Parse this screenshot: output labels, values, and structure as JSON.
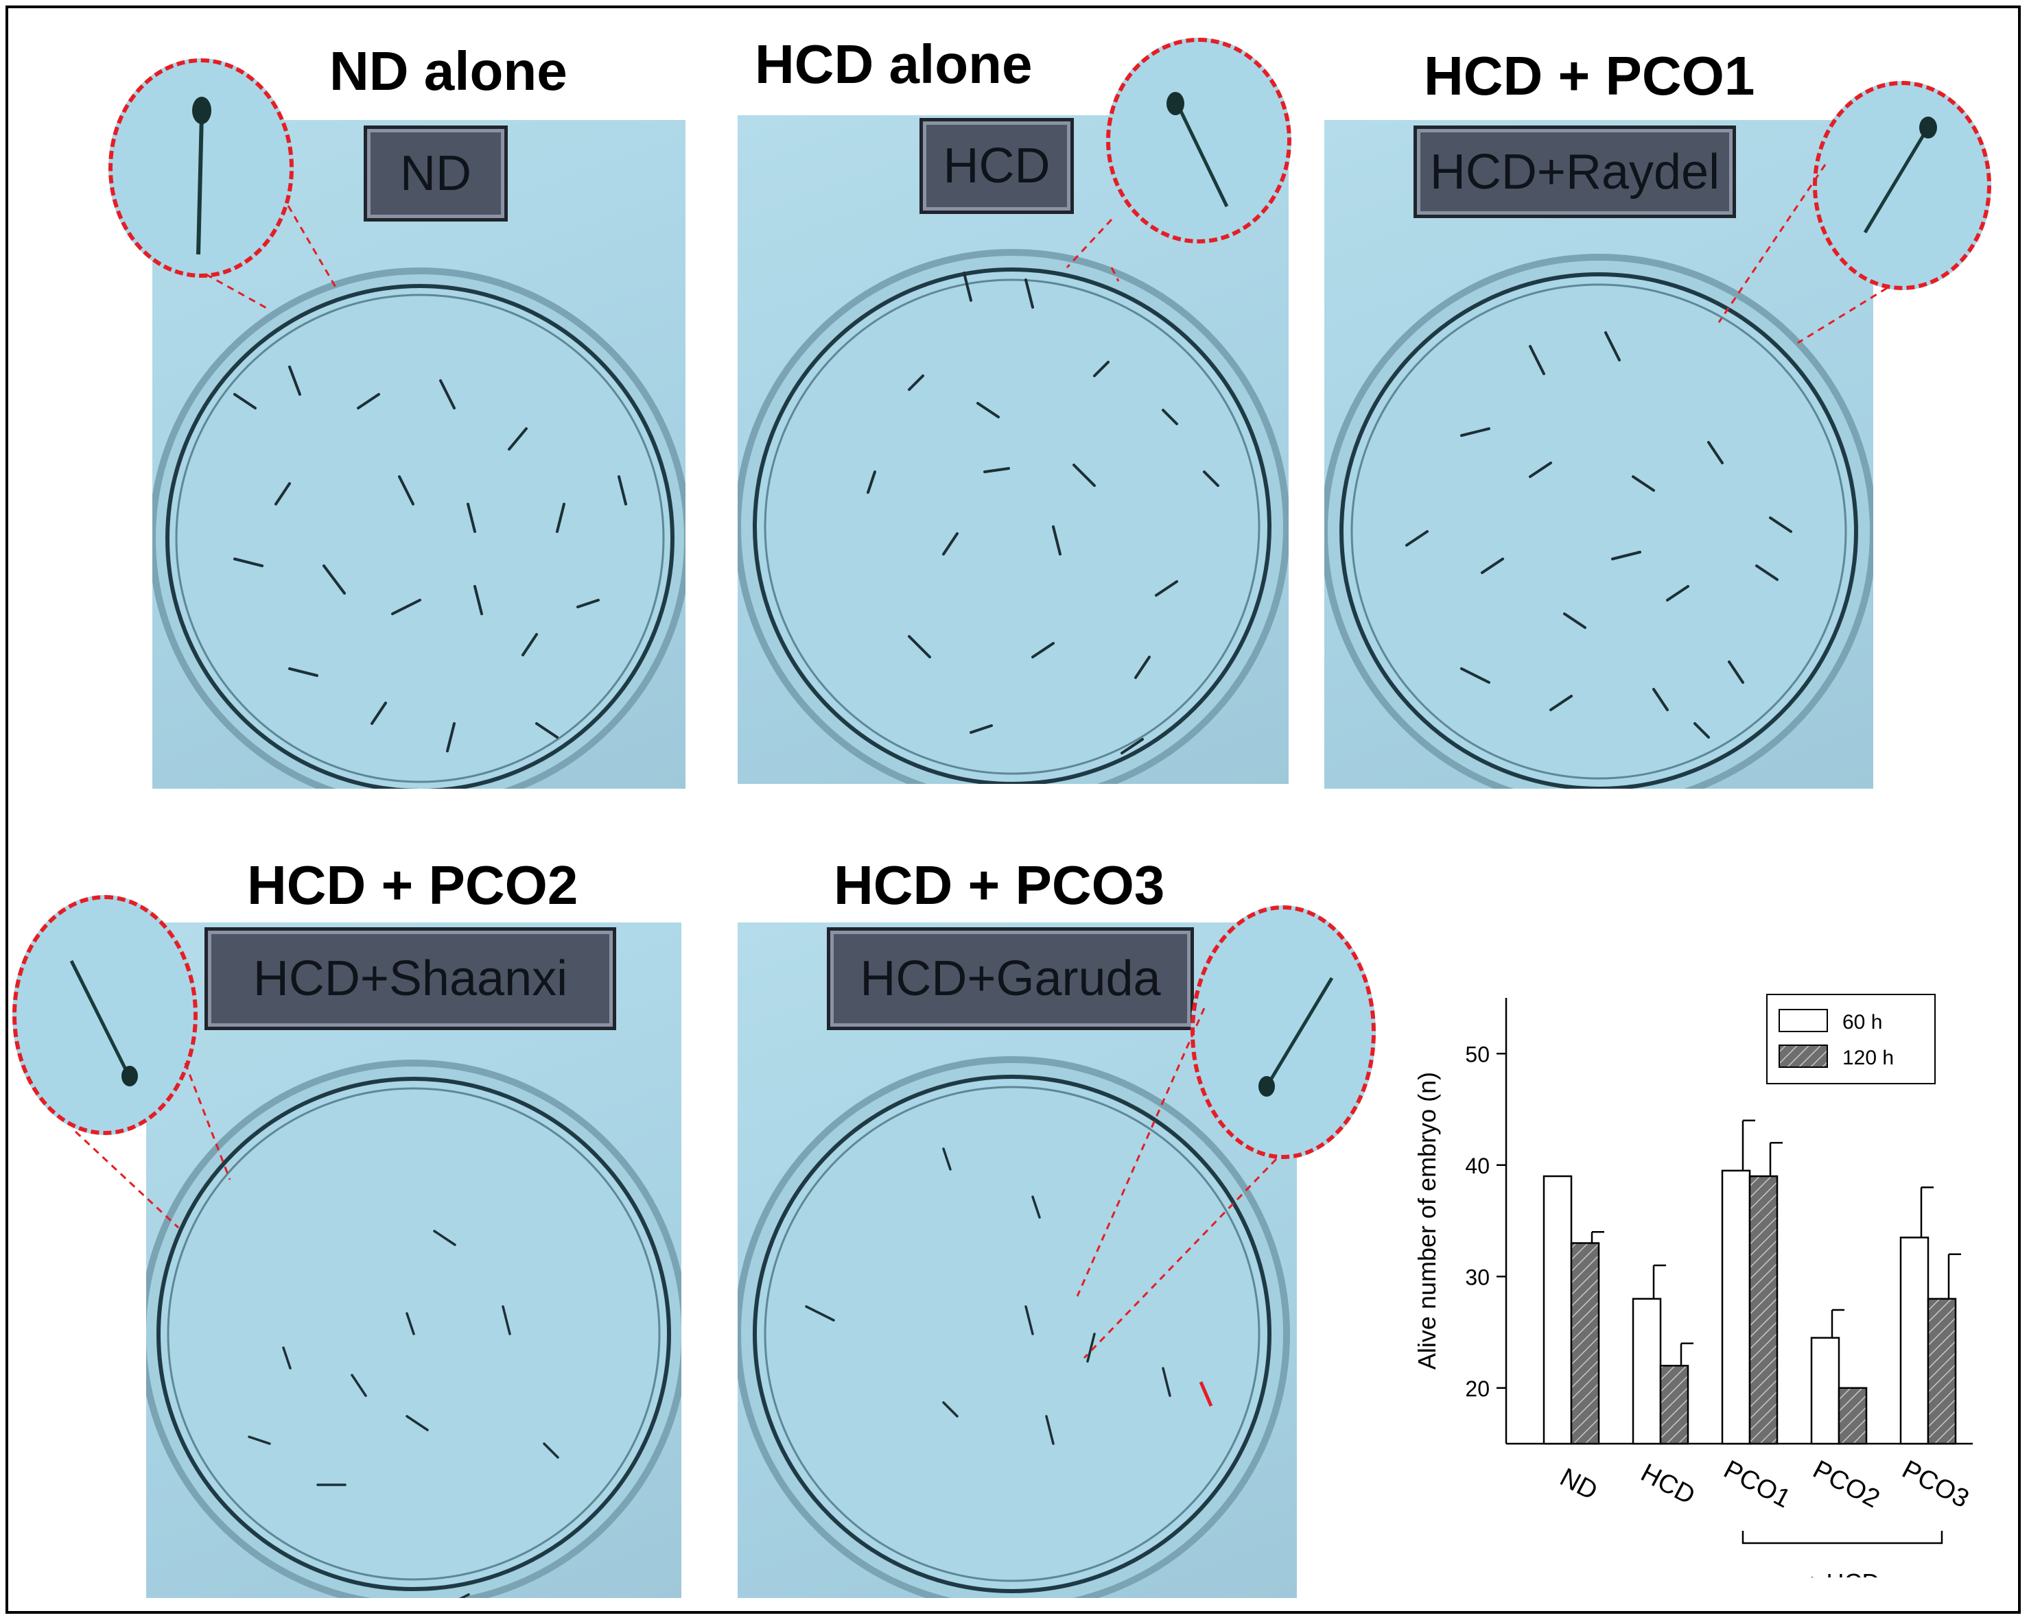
{
  "panels": [
    {
      "title": "ND alone",
      "plate_label": "ND"
    },
    {
      "title": "HCD alone",
      "plate_label": "HCD"
    },
    {
      "title": "HCD + PCO1",
      "plate_label": "HCD+Raydel"
    },
    {
      "title": "HCD + PCO2",
      "plate_label": "HCD+Shaanxi"
    },
    {
      "title": "HCD + PCO3",
      "plate_label": "HCD+Garuda"
    }
  ],
  "colors": {
    "zoom_circle": "#e51e25",
    "plate_bg": "#a9d6e6",
    "bar_120h": "#6e6e6e"
  },
  "chart_data": {
    "type": "bar",
    "categories": [
      "ND",
      "HCD",
      "PCO1",
      "PCO2",
      "PCO3"
    ],
    "group_bracket_label": "+ HCD",
    "series": [
      {
        "name": "60 h",
        "values": [
          39,
          28,
          39.5,
          24.5,
          33.5
        ],
        "errors": [
          0,
          3,
          4.5,
          2.5,
          4.5
        ],
        "fill": "white"
      },
      {
        "name": "120 h",
        "values": [
          33,
          22,
          39,
          20,
          28
        ],
        "errors": [
          1,
          2,
          3,
          0,
          4
        ],
        "fill": "hatched-gray"
      }
    ],
    "ylabel": "Alive number of embryo (n)",
    "xlabel": "",
    "ylim": [
      15,
      55
    ],
    "yticks": [
      "20",
      "30",
      "40",
      "50"
    ],
    "legend": "top-right",
    "grid": false
  }
}
